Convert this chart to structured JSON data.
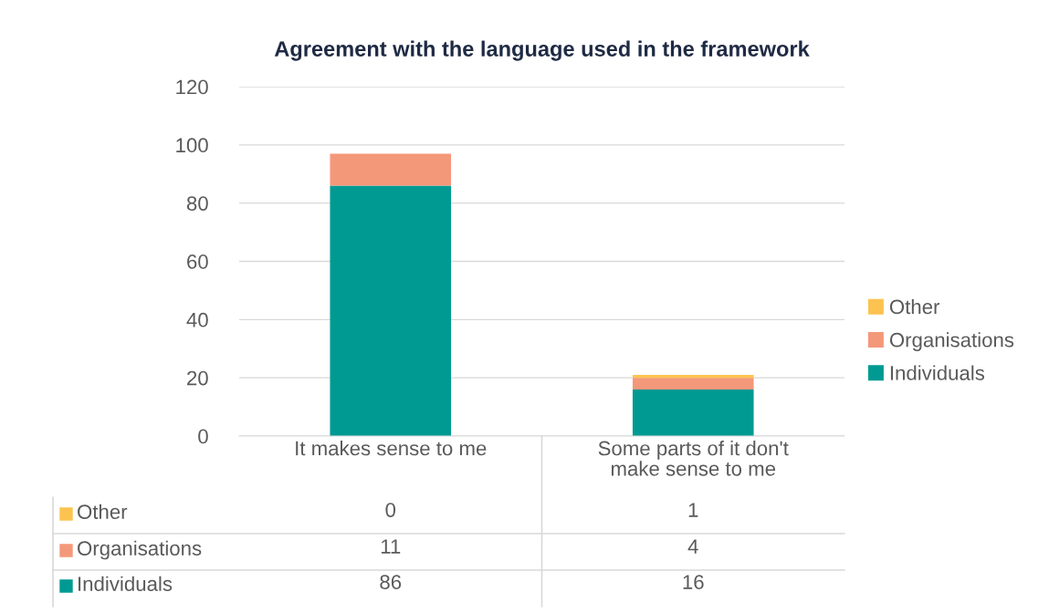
{
  "chart_data": {
    "type": "bar",
    "title": "Agreement with the language used in the framework",
    "categories": [
      "It makes sense to me",
      "Some parts of it don't make sense to me"
    ],
    "series": [
      {
        "name": "Individuals",
        "color": "#009a93",
        "values": [
          86,
          16
        ]
      },
      {
        "name": "Organisations",
        "color": "#f4987a",
        "values": [
          11,
          4
        ]
      },
      {
        "name": "Other",
        "color": "#fdc350",
        "values": [
          0,
          1
        ]
      }
    ],
    "stacked": true,
    "ylim": [
      0,
      120
    ],
    "yticks": [
      0,
      20,
      40,
      60,
      80,
      100,
      120
    ],
    "grid": "y",
    "legend": "right",
    "data_labels": true
  }
}
